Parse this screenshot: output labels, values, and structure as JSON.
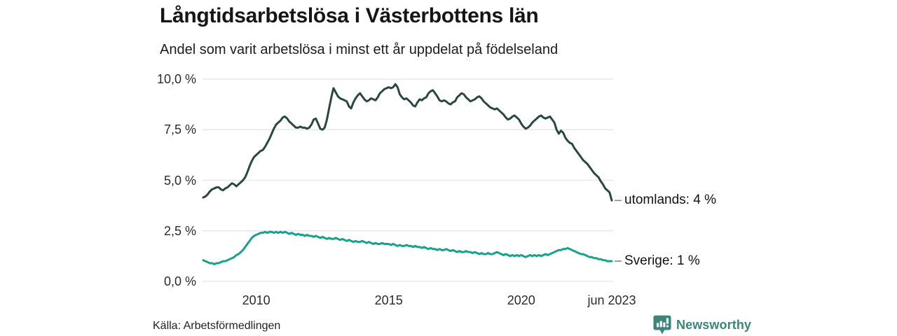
{
  "header": {
    "title": "Långtidsarbetslösa i Västerbottens län",
    "subtitle": "Andel som varit arbetslösa i minst ett år uppdelat på födelseland"
  },
  "footer": {
    "source": "Källa: Arbetsförmedlingen",
    "brand": "Newsworthy"
  },
  "colors": {
    "utomlands_line": "#2b4742",
    "sverige_line": "#17a28b",
    "grid": "#e3e3e3",
    "leader_dash": "#888888",
    "brand_teal": "#3b857b",
    "text": "#1a1a1a"
  },
  "chart_data": {
    "type": "line",
    "title": "Långtidsarbetslösa i Västerbottens län",
    "subtitle": "Andel som varit arbetslösa i minst ett år uppdelat på födelseland",
    "unit": "%",
    "frequency": "monthly",
    "x_start": "2008-01",
    "x_end": "2023-06",
    "ylim": [
      0,
      10
    ],
    "grid": "horizontal",
    "legend_position": "end-of-line-labels",
    "y_ticks": [
      {
        "value": 0,
        "label": "0,0 %"
      },
      {
        "value": 2.5,
        "label": "2,5 %"
      },
      {
        "value": 5,
        "label": "5,0 %"
      },
      {
        "value": 7.5,
        "label": "7,5 %"
      },
      {
        "value": 10,
        "label": "10,0 %"
      }
    ],
    "x_ticks": [
      {
        "month_index": 24,
        "label": "2010"
      },
      {
        "month_index": 84,
        "label": "2015"
      },
      {
        "month_index": 144,
        "label": "2020"
      },
      {
        "month_index": 185,
        "label": "jun 2023"
      }
    ],
    "series": [
      {
        "name": "utomlands",
        "end_label": "utomlands: 4 %",
        "end_value_label": "4 %",
        "color_key": "utomlands_line",
        "values": [
          4.15,
          4.2,
          4.3,
          4.45,
          4.55,
          4.6,
          4.65,
          4.65,
          4.55,
          4.5,
          4.6,
          4.65,
          4.75,
          4.85,
          4.8,
          4.7,
          4.8,
          4.9,
          5.0,
          5.15,
          5.4,
          5.7,
          5.95,
          6.15,
          6.25,
          6.35,
          6.45,
          6.5,
          6.65,
          6.85,
          7.05,
          7.3,
          7.55,
          7.75,
          7.85,
          7.95,
          8.1,
          8.15,
          8.05,
          7.9,
          7.8,
          7.7,
          7.6,
          7.6,
          7.65,
          7.6,
          7.6,
          7.55,
          7.6,
          7.75,
          8.0,
          8.05,
          7.8,
          7.55,
          7.5,
          7.6,
          8.0,
          8.55,
          9.1,
          9.55,
          9.35,
          9.15,
          9.05,
          9.0,
          8.95,
          8.9,
          8.65,
          8.55,
          8.85,
          9.05,
          9.2,
          9.3,
          9.15,
          9.0,
          8.9,
          8.95,
          9.05,
          9.0,
          8.95,
          9.1,
          9.3,
          9.4,
          9.5,
          9.55,
          9.6,
          9.55,
          9.6,
          9.75,
          9.6,
          9.25,
          9.1,
          9.0,
          9.05,
          8.95,
          8.85,
          8.7,
          8.65,
          8.85,
          9.0,
          8.95,
          9.05,
          9.1,
          9.3,
          9.4,
          9.45,
          9.3,
          9.15,
          8.95,
          8.9,
          8.95,
          8.9,
          8.8,
          8.75,
          8.85,
          8.9,
          9.1,
          9.2,
          9.3,
          9.25,
          9.1,
          9.0,
          8.9,
          8.95,
          9.0,
          9.1,
          9.15,
          9.05,
          8.9,
          8.8,
          8.7,
          8.6,
          8.55,
          8.5,
          8.55,
          8.45,
          8.35,
          8.25,
          8.1,
          8.0,
          8.05,
          8.15,
          8.2,
          8.1,
          8.0,
          7.8,
          7.65,
          7.55,
          7.6,
          7.7,
          7.85,
          7.95,
          8.05,
          8.15,
          8.2,
          8.1,
          8.05,
          8.1,
          8.15,
          8.0,
          7.85,
          7.5,
          7.3,
          7.45,
          7.35,
          7.1,
          6.95,
          6.85,
          6.8,
          6.6,
          6.45,
          6.3,
          6.15,
          6.0,
          5.9,
          5.8,
          5.65,
          5.5,
          5.35,
          5.25,
          5.15,
          4.95,
          4.8,
          4.6,
          4.5,
          4.4,
          4.0
        ]
      },
      {
        "name": "Sverige",
        "end_label": "Sverige: 1 %",
        "end_value_label": "1 %",
        "color_key": "sverige_line",
        "values": [
          1.05,
          1.0,
          0.95,
          0.9,
          0.9,
          0.85,
          0.9,
          0.9,
          0.95,
          1.0,
          1.0,
          1.05,
          1.1,
          1.15,
          1.2,
          1.3,
          1.35,
          1.45,
          1.55,
          1.7,
          1.85,
          2.0,
          2.15,
          2.25,
          2.3,
          2.35,
          2.4,
          2.4,
          2.45,
          2.4,
          2.45,
          2.45,
          2.4,
          2.45,
          2.4,
          2.45,
          2.4,
          2.45,
          2.4,
          2.35,
          2.4,
          2.35,
          2.3,
          2.35,
          2.3,
          2.3,
          2.25,
          2.3,
          2.25,
          2.25,
          2.2,
          2.25,
          2.2,
          2.15,
          2.2,
          2.15,
          2.1,
          2.15,
          2.1,
          2.1,
          2.15,
          2.1,
          2.05,
          2.1,
          2.05,
          2.0,
          2.05,
          2.0,
          1.95,
          2.0,
          1.95,
          1.95,
          2.0,
          1.95,
          1.9,
          1.95,
          1.9,
          1.85,
          1.9,
          1.85,
          1.85,
          1.9,
          1.85,
          1.85,
          1.85,
          1.8,
          1.85,
          1.8,
          1.75,
          1.8,
          1.75,
          1.75,
          1.8,
          1.75,
          1.75,
          1.7,
          1.75,
          1.7,
          1.7,
          1.65,
          1.7,
          1.65,
          1.6,
          1.65,
          1.6,
          1.6,
          1.55,
          1.6,
          1.55,
          1.55,
          1.6,
          1.55,
          1.5,
          1.55,
          1.5,
          1.45,
          1.5,
          1.45,
          1.45,
          1.5,
          1.45,
          1.45,
          1.4,
          1.45,
          1.4,
          1.35,
          1.4,
          1.35,
          1.35,
          1.4,
          1.35,
          1.35,
          1.4,
          1.45,
          1.4,
          1.35,
          1.3,
          1.35,
          1.3,
          1.25,
          1.3,
          1.25,
          1.3,
          1.25,
          1.3,
          1.25,
          1.2,
          1.25,
          1.3,
          1.25,
          1.3,
          1.25,
          1.3,
          1.25,
          1.3,
          1.35,
          1.3,
          1.35,
          1.4,
          1.45,
          1.5,
          1.55,
          1.55,
          1.6,
          1.6,
          1.65,
          1.6,
          1.55,
          1.5,
          1.45,
          1.4,
          1.35,
          1.35,
          1.3,
          1.25,
          1.2,
          1.2,
          1.15,
          1.15,
          1.1,
          1.1,
          1.05,
          1.05,
          1.0,
          1.0,
          1.0
        ]
      }
    ]
  }
}
